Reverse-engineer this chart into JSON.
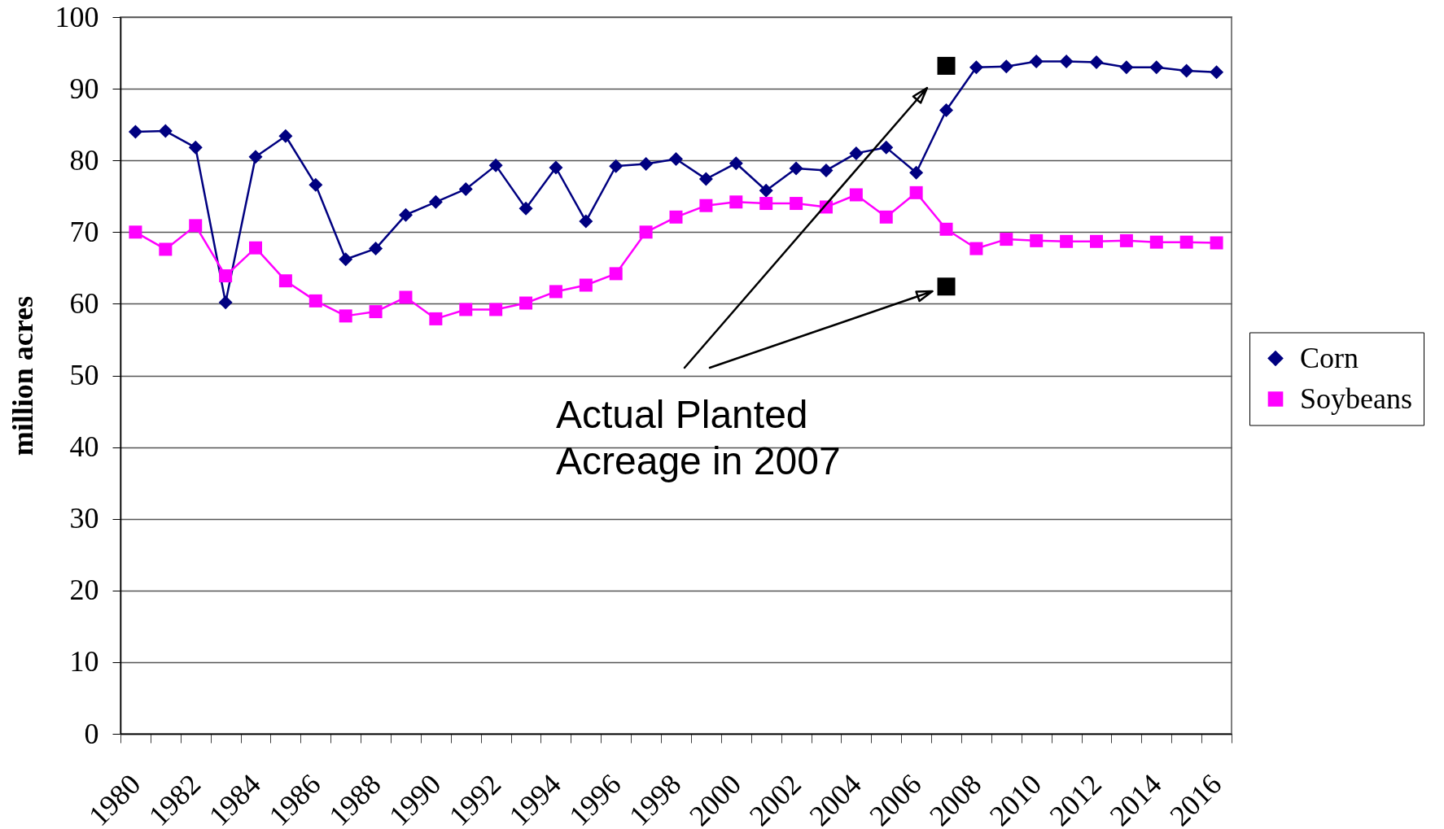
{
  "chart_data": {
    "type": "line",
    "ylabel": "million acres",
    "categories": [
      "1980",
      null,
      "1982",
      null,
      "1984",
      null,
      "1986",
      null,
      "1988",
      null,
      "1990",
      null,
      "1992",
      null,
      "1994",
      null,
      "1996",
      null,
      "1998",
      null,
      "2000",
      null,
      "2002",
      null,
      "2004",
      null,
      "2006",
      null,
      "2008",
      null,
      "2010",
      null,
      "2012",
      null,
      "2014",
      null,
      "2016"
    ],
    "series": [
      {
        "name": "Corn",
        "color": "#000080",
        "marker": "diamond",
        "values": [
          84.0,
          84.1,
          81.8,
          60.2,
          80.5,
          83.4,
          76.6,
          66.2,
          67.7,
          72.4,
          74.2,
          76.0,
          79.3,
          73.3,
          79.0,
          71.5,
          79.2,
          79.5,
          80.2,
          77.4,
          79.6,
          75.8,
          78.9,
          78.6,
          81.0,
          81.8,
          78.3,
          87.0,
          93.0,
          93.1,
          93.8,
          93.8,
          93.7,
          93.0,
          93.0,
          92.5,
          92.3
        ]
      },
      {
        "name": "Soybeans",
        "color": "#ff00ff",
        "marker": "square",
        "values": [
          70.0,
          67.6,
          70.9,
          63.9,
          67.8,
          63.2,
          60.4,
          58.3,
          58.9,
          60.9,
          57.9,
          59.2,
          59.2,
          60.1,
          61.7,
          62.6,
          64.2,
          70.0,
          72.1,
          73.7,
          74.2,
          74.0,
          74.0,
          73.5,
          75.2,
          72.1,
          75.5,
          70.4,
          67.7,
          69.0,
          68.8,
          68.7,
          68.7,
          68.8,
          68.6,
          68.6,
          68.5
        ]
      },
      {
        "type": "scatter",
        "color": "#000000",
        "marker": "square",
        "values": [
          null,
          null,
          null,
          null,
          null,
          null,
          null,
          null,
          null,
          null,
          null,
          null,
          null,
          null,
          null,
          null,
          null,
          null,
          null,
          null,
          null,
          null,
          null,
          null,
          null,
          null,
          null,
          93.2,
          null,
          null,
          null,
          null,
          null,
          null,
          null,
          null,
          null
        ]
      },
      {
        "type": "scatter",
        "color": "#000000",
        "marker": "square",
        "values": [
          null,
          null,
          null,
          null,
          null,
          null,
          null,
          null,
          null,
          null,
          null,
          null,
          null,
          null,
          null,
          null,
          null,
          null,
          null,
          null,
          null,
          null,
          null,
          null,
          null,
          null,
          null,
          62.4,
          null,
          null,
          null,
          null,
          null,
          null,
          null,
          null,
          null
        ]
      }
    ],
    "ylim": [
      0,
      100
    ],
    "yticks": [
      0,
      10,
      20,
      30,
      40,
      50,
      60,
      70,
      80,
      90,
      100
    ],
    "grid": "y",
    "legend": "right",
    "annotations": [
      "Actual Planted Acreage in 2007"
    ]
  }
}
